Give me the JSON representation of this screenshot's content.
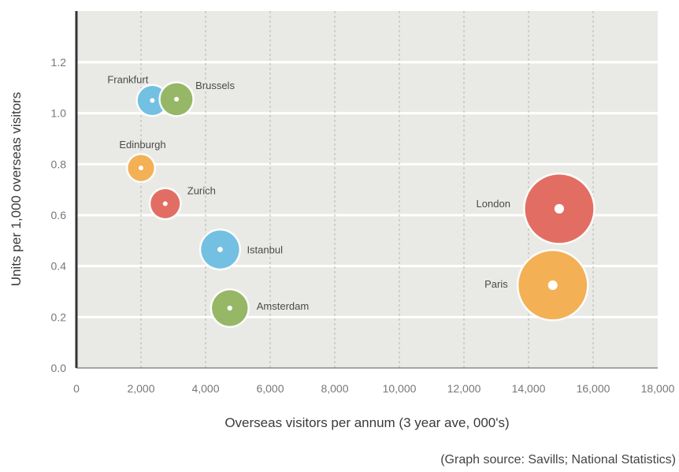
{
  "chart_data": {
    "type": "bubble",
    "xlabel": "Overseas visitors per annum (3 year ave, 000's)",
    "ylabel": "Units per 1,000 overseas visitors",
    "xlim": [
      0,
      18000
    ],
    "ylim": [
      0,
      1.35
    ],
    "x_ticks": [
      0,
      2000,
      4000,
      6000,
      8000,
      10000,
      12000,
      14000,
      16000,
      18000
    ],
    "x_tick_labels": [
      "0",
      "2,000",
      "4,000",
      "6,000",
      "8,000",
      "10,000",
      "12,000",
      "14,000",
      "16,000",
      "18,000"
    ],
    "y_ticks": [
      0,
      0.2,
      0.4,
      0.6,
      0.8,
      1.0,
      1.2
    ],
    "y_tick_labels": [
      "0.0",
      "0.2",
      "0.4",
      "0.6",
      "0.8",
      "1.0",
      "1.2"
    ],
    "grid": true,
    "source_note": "(Graph source: Savills; National Statistics)",
    "points": [
      {
        "name": "Frankfurt",
        "x": 2350,
        "y": 1.05,
        "color": "#6bbde0",
        "size": 1.0
      },
      {
        "name": "Brussels",
        "x": 3100,
        "y": 1.055,
        "color": "#8fb35e",
        "size": 1.2
      },
      {
        "name": "Edinburgh",
        "x": 2000,
        "y": 0.785,
        "color": "#f2ac4c",
        "size": 0.8
      },
      {
        "name": "Zurich",
        "x": 2750,
        "y": 0.645,
        "color": "#e0665b",
        "size": 1.0
      },
      {
        "name": "Istanbul",
        "x": 4450,
        "y": 0.465,
        "color": "#6bbde0",
        "size": 1.7
      },
      {
        "name": "Amsterdam",
        "x": 4750,
        "y": 0.235,
        "color": "#8fb35e",
        "size": 1.5
      },
      {
        "name": "London",
        "x": 14950,
        "y": 0.625,
        "color": "#e0665b",
        "size": 5.5
      },
      {
        "name": "Paris",
        "x": 14750,
        "y": 0.325,
        "color": "#f2ac4c",
        "size": 5.5
      }
    ]
  }
}
